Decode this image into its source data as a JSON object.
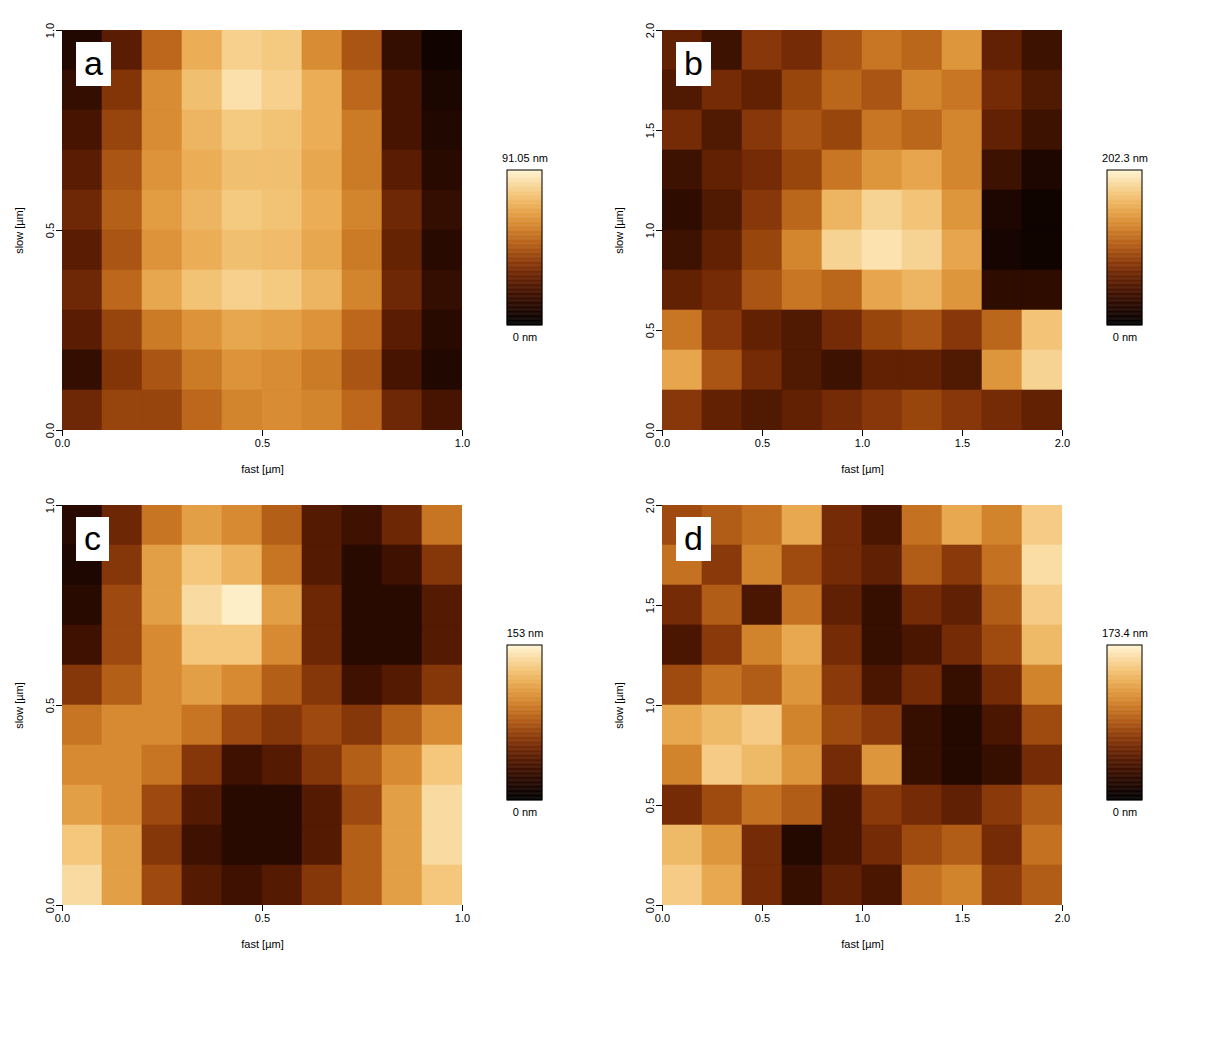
{
  "chart_data": [
    {
      "type": "heatmap",
      "panel_label": "a",
      "xlabel": "fast [µm]",
      "ylabel": "slow [µm]",
      "xlim": [
        0,
        1
      ],
      "ylim": [
        0,
        1
      ],
      "xticks": [
        {
          "value": 0,
          "label": "0.0"
        },
        {
          "value": 0.5,
          "label": "0.5"
        },
        {
          "value": 1,
          "label": "1.0"
        }
      ],
      "yticks": [
        {
          "value": 0,
          "label": "0.0"
        },
        {
          "value": 0.5,
          "label": "0.5"
        },
        {
          "value": 1,
          "label": "1.0"
        }
      ],
      "cells": [
        [
          10,
          25,
          50,
          70,
          80,
          78,
          60,
          45,
          15,
          5
        ],
        [
          15,
          35,
          60,
          75,
          85,
          80,
          70,
          50,
          20,
          8
        ],
        [
          20,
          40,
          60,
          72,
          78,
          76,
          70,
          55,
          20,
          10
        ],
        [
          25,
          45,
          62,
          70,
          75,
          75,
          68,
          55,
          25,
          12
        ],
        [
          30,
          48,
          65,
          72,
          78,
          76,
          70,
          58,
          30,
          15
        ],
        [
          25,
          45,
          62,
          70,
          75,
          74,
          68,
          55,
          28,
          12
        ],
        [
          30,
          50,
          68,
          76,
          80,
          78,
          72,
          58,
          30,
          15
        ],
        [
          25,
          40,
          55,
          62,
          68,
          66,
          62,
          50,
          25,
          12
        ],
        [
          15,
          35,
          45,
          55,
          62,
          60,
          55,
          45,
          20,
          10
        ],
        [
          30,
          40,
          40,
          50,
          58,
          60,
          58,
          50,
          30,
          20
        ]
      ],
      "colorbar_range": [
        0,
        91.05
      ],
      "colorbar_ticks": [
        {
          "value": 91.05,
          "label": "91.05 nm"
        },
        {
          "value": 0,
          "label": "0 nm"
        }
      ]
    },
    {
      "type": "heatmap",
      "panel_label": "b",
      "xlabel": "fast [µm]",
      "ylabel": "slow [µm]",
      "xlim": [
        0,
        2
      ],
      "ylim": [
        0,
        2
      ],
      "xticks": [
        {
          "value": 0,
          "label": "0.0"
        },
        {
          "value": 0.5,
          "label": "0.5"
        },
        {
          "value": 1,
          "label": "1.0"
        },
        {
          "value": 1.5,
          "label": "1.5"
        },
        {
          "value": 2,
          "label": "2.0"
        }
      ],
      "yticks": [
        {
          "value": 0,
          "label": "0.0"
        },
        {
          "value": 0.5,
          "label": "0.5"
        },
        {
          "value": 1,
          "label": "1.0"
        },
        {
          "value": 1.5,
          "label": "1.5"
        },
        {
          "value": 2,
          "label": "2.0"
        }
      ],
      "cells": [
        [
          60,
          40,
          80,
          70,
          100,
          120,
          110,
          140,
          60,
          40
        ],
        [
          50,
          70,
          60,
          90,
          110,
          100,
          130,
          120,
          70,
          50
        ],
        [
          70,
          50,
          80,
          100,
          90,
          120,
          110,
          130,
          60,
          40
        ],
        [
          40,
          60,
          70,
          90,
          120,
          140,
          150,
          130,
          40,
          20
        ],
        [
          30,
          50,
          80,
          110,
          160,
          180,
          170,
          140,
          20,
          10
        ],
        [
          40,
          60,
          90,
          130,
          180,
          190,
          180,
          150,
          15,
          10
        ],
        [
          60,
          70,
          100,
          120,
          110,
          150,
          160,
          140,
          30,
          30
        ],
        [
          120,
          80,
          60,
          50,
          70,
          90,
          100,
          80,
          110,
          170
        ],
        [
          150,
          100,
          70,
          50,
          40,
          60,
          60,
          50,
          140,
          180
        ],
        [
          80,
          60,
          50,
          60,
          70,
          80,
          90,
          80,
          70,
          60
        ]
      ],
      "colorbar_range": [
        0,
        202.3
      ],
      "colorbar_ticks": [
        {
          "value": 202.3,
          "label": "202.3 nm"
        },
        {
          "value": 0,
          "label": "0 nm"
        }
      ]
    },
    {
      "type": "heatmap",
      "panel_label": "c",
      "xlabel": "fast [µm]",
      "ylabel": "slow [µm]",
      "xlim": [
        0,
        1
      ],
      "ylim": [
        0,
        1
      ],
      "xticks": [
        {
          "value": 0,
          "label": "0.0"
        },
        {
          "value": 0.5,
          "label": "0.5"
        },
        {
          "value": 1,
          "label": "1.0"
        }
      ],
      "yticks": [
        {
          "value": 0,
          "label": "0.0"
        },
        {
          "value": 0.5,
          "label": "0.5"
        },
        {
          "value": 1,
          "label": "1.0"
        }
      ],
      "cells": [
        [
          20,
          50,
          90,
          110,
          100,
          80,
          40,
          30,
          50,
          90
        ],
        [
          15,
          60,
          110,
          130,
          120,
          90,
          40,
          20,
          30,
          60
        ],
        [
          20,
          70,
          110,
          140,
          150,
          110,
          50,
          20,
          20,
          40
        ],
        [
          30,
          70,
          100,
          130,
          130,
          100,
          50,
          20,
          20,
          40
        ],
        [
          60,
          80,
          100,
          110,
          100,
          80,
          60,
          30,
          40,
          60
        ],
        [
          90,
          100,
          100,
          90,
          70,
          60,
          70,
          60,
          80,
          100
        ],
        [
          100,
          100,
          90,
          60,
          30,
          40,
          60,
          80,
          100,
          130
        ],
        [
          110,
          100,
          70,
          40,
          20,
          20,
          40,
          70,
          110,
          140
        ],
        [
          130,
          110,
          60,
          30,
          20,
          20,
          40,
          80,
          110,
          140
        ],
        [
          140,
          110,
          70,
          40,
          30,
          40,
          60,
          80,
          110,
          130
        ]
      ],
      "colorbar_range": [
        0,
        153
      ],
      "colorbar_ticks": [
        {
          "value": 153,
          "label": "153 nm"
        },
        {
          "value": 0,
          "label": "0 nm"
        }
      ]
    },
    {
      "type": "heatmap",
      "panel_label": "d",
      "xlabel": "fast [µm]",
      "ylabel": "slow [µm]",
      "xlim": [
        0,
        2
      ],
      "ylim": [
        0,
        2
      ],
      "xticks": [
        {
          "value": 0,
          "label": "0.0"
        },
        {
          "value": 0.5,
          "label": "0.5"
        },
        {
          "value": 1,
          "label": "1.0"
        },
        {
          "value": 1.5,
          "label": "1.5"
        },
        {
          "value": 2,
          "label": "2.0"
        }
      ],
      "yticks": [
        {
          "value": 0,
          "label": "0.0"
        },
        {
          "value": 0.5,
          "label": "0.5"
        },
        {
          "value": 1,
          "label": "1.0"
        },
        {
          "value": 1.5,
          "label": "1.5"
        },
        {
          "value": 2,
          "label": "2.0"
        }
      ],
      "cells": [
        [
          80,
          90,
          100,
          130,
          60,
          40,
          100,
          130,
          110,
          150
        ],
        [
          100,
          70,
          110,
          80,
          60,
          50,
          90,
          70,
          100,
          160
        ],
        [
          60,
          90,
          40,
          100,
          50,
          30,
          60,
          50,
          90,
          150
        ],
        [
          40,
          70,
          110,
          130,
          60,
          30,
          40,
          60,
          80,
          140
        ],
        [
          80,
          100,
          90,
          120,
          70,
          40,
          60,
          30,
          60,
          110
        ],
        [
          130,
          140,
          150,
          110,
          80,
          70,
          30,
          20,
          40,
          80
        ],
        [
          110,
          150,
          140,
          120,
          60,
          120,
          30,
          20,
          30,
          60
        ],
        [
          60,
          80,
          100,
          90,
          40,
          70,
          60,
          50,
          70,
          90
        ],
        [
          140,
          120,
          60,
          20,
          40,
          60,
          80,
          90,
          60,
          100
        ],
        [
          150,
          130,
          60,
          30,
          50,
          40,
          100,
          110,
          70,
          90
        ]
      ],
      "colorbar_range": [
        0,
        173.4
      ],
      "colorbar_ticks": [
        {
          "value": 173.4,
          "label": "173.4 nm"
        },
        {
          "value": 0,
          "label": "0 nm"
        }
      ]
    }
  ]
}
